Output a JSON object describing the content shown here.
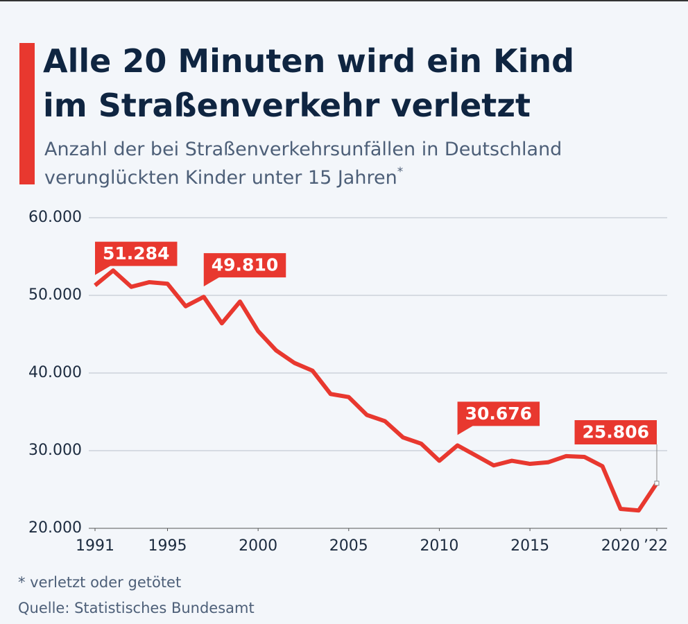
{
  "chart_data": {
    "type": "line",
    "title": [
      "Alle 20 Minuten wird ein Kind",
      "im Straßenverkehr verletzt"
    ],
    "subtitle": [
      "Anzahl der bei Straßenverkehrsunfällen in Deutschland",
      "verunglückten Kinder unter 15 Jahren"
    ],
    "subtitle_marker": "*",
    "x": [
      1991,
      1992,
      1993,
      1994,
      1995,
      1996,
      1997,
      1998,
      1999,
      2000,
      2001,
      2002,
      2003,
      2004,
      2005,
      2006,
      2007,
      2008,
      2009,
      2010,
      2011,
      2012,
      2013,
      2014,
      2015,
      2016,
      2017,
      2018,
      2019,
      2020,
      2021,
      2022
    ],
    "series": [
      {
        "name": "Verunglückte Kinder",
        "color": "#e8382f",
        "values": [
          51284,
          53200,
          51100,
          51700,
          51500,
          48600,
          49810,
          46400,
          49200,
          45400,
          42900,
          41300,
          40300,
          37300,
          36900,
          34600,
          33800,
          31700,
          30900,
          28700,
          30676,
          29400,
          28100,
          28700,
          28300,
          28500,
          29300,
          29200,
          28000,
          22500,
          22300,
          25806
        ],
        "value_labels": [
          "51.284",
          null,
          null,
          null,
          null,
          null,
          "49.810",
          null,
          null,
          null,
          null,
          null,
          null,
          null,
          null,
          null,
          null,
          null,
          null,
          null,
          "30.676",
          null,
          null,
          null,
          null,
          null,
          null,
          null,
          null,
          null,
          null,
          "25.806"
        ]
      }
    ],
    "xlim": [
      1991,
      2022
    ],
    "xticks": [
      1991,
      1995,
      2000,
      2005,
      2010,
      2015,
      2020,
      {
        "value": 2022,
        "label": "’22"
      }
    ],
    "ylim": [
      20000,
      60000
    ],
    "yticks": [
      {
        "value": 20000,
        "label": "20.000"
      },
      {
        "value": 30000,
        "label": "30.000"
      },
      {
        "value": 40000,
        "label": "40.000"
      },
      {
        "value": 50000,
        "label": "50.000"
      },
      {
        "value": 60000,
        "label": "60.000"
      }
    ],
    "grid": true,
    "notes": [
      "* verletzt oder getötet",
      "Quelle: Statistisches Bundesamt"
    ]
  }
}
